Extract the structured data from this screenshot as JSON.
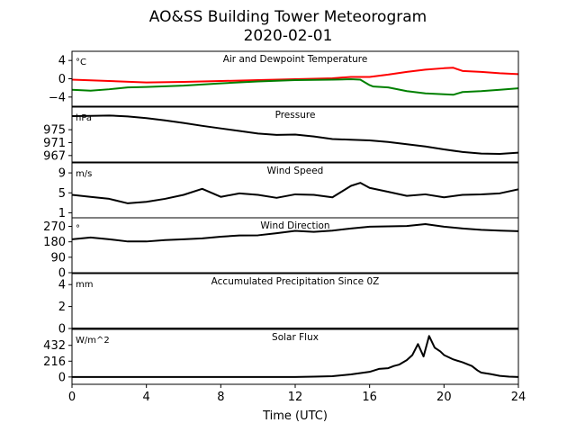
{
  "chart_data": {
    "type": "line",
    "title": "AO&SS Building Tower Meteorogram",
    "subtitle": "2020-02-01",
    "xlabel": "Time (UTC)",
    "xlim": [
      0,
      24
    ],
    "x_ticks": [
      0,
      4,
      8,
      12,
      16,
      20,
      24
    ],
    "grid": false,
    "panels": [
      {
        "title": "Air and Dewpoint Temperature",
        "unit": "°C",
        "ylim": [
          -6,
          6
        ],
        "y_ticks": [
          4,
          0,
          -4
        ],
        "y_tick_labels": [
          "4",
          "0",
          "−4"
        ],
        "series": [
          {
            "color": "#ff0000",
            "x": [
              0,
              2,
              4,
              6,
              8,
              10,
              12,
              14,
              15,
              16,
              17,
              18,
              19,
              20,
              20.5,
              21,
              22,
              23,
              24
            ],
            "y": [
              -0.2,
              -0.5,
              -0.8,
              -0.7,
              -0.5,
              -0.3,
              -0.1,
              0.1,
              0.4,
              0.4,
              0.9,
              1.5,
              2.0,
              2.3,
              2.4,
              1.7,
              1.5,
              1.2,
              1.0
            ]
          },
          {
            "color": "#008000",
            "x": [
              0,
              1,
              2,
              3,
              4,
              6,
              8,
              10,
              12,
              14,
              15,
              15.5,
              16,
              16.2,
              17,
              18,
              19,
              20,
              20.5,
              21,
              22,
              23,
              24
            ],
            "y": [
              -2.4,
              -2.6,
              -2.3,
              -1.9,
              -1.8,
              -1.5,
              -1.0,
              -0.6,
              -0.3,
              -0.2,
              -0.1,
              -0.2,
              -1.4,
              -1.7,
              -1.9,
              -2.7,
              -3.2,
              -3.4,
              -3.5,
              -2.9,
              -2.7,
              -2.4,
              -2.1
            ]
          }
        ]
      },
      {
        "title": "Pressure",
        "unit": "hPa",
        "ylim": [
          965,
          982
        ],
        "y_ticks": [
          975,
          971,
          967
        ],
        "y_tick_labels": [
          "975",
          "971",
          "967"
        ],
        "series": [
          {
            "color": "#000000",
            "x": [
              0,
              1,
              2,
              3,
              4,
              5,
              6,
              7,
              8,
              9,
              10,
              11,
              12,
              13,
              14,
              15,
              16,
              17,
              18,
              19,
              20,
              21,
              22,
              23,
              24
            ],
            "y": [
              979.2,
              979.3,
              979.4,
              979.1,
              978.6,
              977.9,
              977.1,
              976.2,
              975.4,
              974.6,
              973.8,
              973.4,
              973.5,
              972.9,
              972.1,
              971.9,
              971.7,
              971.2,
              970.5,
              969.8,
              968.9,
              968.1,
              967.6,
              967.5,
              967.9
            ]
          }
        ]
      },
      {
        "title": "Wind Speed",
        "unit": "m/s",
        "ylim": [
          0,
          11
        ],
        "y_ticks": [
          9,
          5,
          1
        ],
        "y_tick_labels": [
          "9",
          "5",
          "1"
        ],
        "series": [
          {
            "color": "#000000",
            "x": [
              0,
              1,
              2,
              3,
              4,
              5,
              6,
              7,
              8,
              9,
              10,
              11,
              12,
              13,
              14,
              15,
              15.5,
              16,
              17,
              18,
              19,
              20,
              21,
              22,
              23,
              24
            ],
            "y": [
              4.6,
              4.2,
              3.8,
              2.9,
              3.2,
              3.8,
              4.6,
              5.8,
              4.2,
              4.9,
              4.6,
              4.0,
              4.7,
              4.6,
              4.1,
              6.4,
              7.0,
              6.0,
              5.2,
              4.4,
              4.7,
              4.1,
              4.6,
              4.7,
              4.9,
              5.7
            ]
          }
        ]
      },
      {
        "title": "Wind Direction",
        "unit": "°",
        "ylim": [
          0,
          320
        ],
        "y_ticks": [
          270,
          180,
          90,
          0
        ],
        "y_tick_labels": [
          "270",
          "180",
          "90",
          "0"
        ],
        "series": [
          {
            "color": "#000000",
            "x": [
              0,
              1,
              2,
              3,
              4,
              5,
              6,
              7,
              8,
              9,
              10,
              11,
              12,
              13,
              14,
              15,
              16,
              17,
              18,
              19,
              20,
              21,
              22,
              23,
              24
            ],
            "y": [
              195,
              205,
              195,
              182,
              182,
              190,
              195,
              200,
              210,
              217,
              218,
              230,
              244,
              238,
              245,
              258,
              268,
              270,
              272,
              283,
              268,
              258,
              250,
              245,
              242
            ]
          }
        ]
      },
      {
        "title": "Accumulated Precipitation Since 0Z",
        "unit": "mm",
        "ylim": [
          0,
          5
        ],
        "y_ticks": [
          4,
          2,
          0
        ],
        "y_tick_labels": [
          "4",
          "2",
          "0"
        ],
        "series": [
          {
            "color": "#000000",
            "x": [
              0,
              24
            ],
            "y": [
              0,
              0
            ]
          }
        ]
      },
      {
        "title": "Solar Flux",
        "unit": "W/m^2",
        "ylim": [
          -100,
          650
        ],
        "y_ticks": [
          432,
          216,
          0
        ],
        "y_tick_labels": [
          "432",
          "216",
          "0"
        ],
        "series": [
          {
            "color": "#000000",
            "x": [
              0,
              4,
              8,
              12,
              13,
              14,
              15,
              16,
              16.5,
              17,
              17.3,
              17.6,
              18,
              18.3,
              18.6,
              18.9,
              19.2,
              19.5,
              19.8,
              20,
              20.5,
              21,
              21.5,
              21.8,
              22,
              22.5,
              23,
              23.5,
              24
            ],
            "y": [
              0,
              0,
              0,
              0,
              5,
              10,
              35,
              70,
              110,
              120,
              150,
              170,
              230,
              300,
              450,
              280,
              560,
              400,
              350,
              300,
              240,
              200,
              150,
              90,
              60,
              40,
              15,
              5,
              0
            ]
          }
        ]
      }
    ]
  }
}
